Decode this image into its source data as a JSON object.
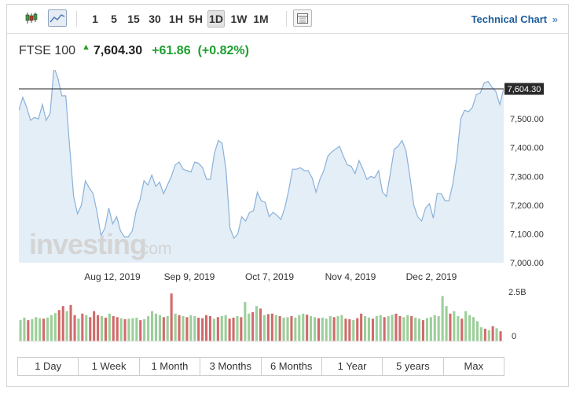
{
  "toolbar": {
    "chart_type_icons": [
      "candlestick-icon",
      "area-chart-icon"
    ],
    "intervals": [
      {
        "label": "1",
        "active": false
      },
      {
        "label": "5",
        "active": false
      },
      {
        "label": "15",
        "active": false
      },
      {
        "label": "30",
        "active": false
      },
      {
        "label": "1H",
        "active": false
      },
      {
        "label": "5H",
        "active": false
      },
      {
        "label": "1D",
        "active": true
      },
      {
        "label": "1W",
        "active": false
      },
      {
        "label": "1M",
        "active": false
      }
    ],
    "table_icon": "table-icon",
    "technical_chart_label": "Technical Chart",
    "technical_chart_chevron": "»"
  },
  "quote": {
    "name": "FTSE 100",
    "arrow": "up-arrow-icon",
    "price": "7,604.30",
    "change": "+61.86",
    "change_percent": "(+0.82%)",
    "color_up": "#1b9f2e"
  },
  "watermark": {
    "text": "investing",
    "suffix": ".com"
  },
  "chart_data": {
    "type": "area",
    "y_ticks": [
      "7,500.00",
      "7,400.00",
      "7,300.00",
      "7,200.00",
      "7,100.00",
      "7,000.00"
    ],
    "y_range": [
      7000,
      7670
    ],
    "x_ticks": [
      "Aug 12, 2019",
      "Sep 9, 2019",
      "Oct 7, 2019",
      "Nov 4, 2019",
      "Dec 2, 2019"
    ],
    "last_price_label": "7,604.30",
    "last_price": 7604.3,
    "line_color": "#8ab1d8",
    "fill_color": "#e4eef7",
    "prices": [
      7530,
      7575,
      7540,
      7495,
      7505,
      7500,
      7550,
      7495,
      7520,
      7680,
      7640,
      7580,
      7580,
      7400,
      7230,
      7170,
      7200,
      7285,
      7260,
      7240,
      7175,
      7095,
      7120,
      7190,
      7135,
      7160,
      7110,
      7090,
      7090,
      7110,
      7180,
      7220,
      7285,
      7270,
      7305,
      7265,
      7280,
      7240,
      7270,
      7300,
      7340,
      7350,
      7325,
      7320,
      7315,
      7350,
      7345,
      7330,
      7290,
      7290,
      7380,
      7425,
      7415,
      7320,
      7120,
      7085,
      7100,
      7160,
      7145,
      7175,
      7180,
      7245,
      7215,
      7210,
      7160,
      7175,
      7165,
      7150,
      7190,
      7250,
      7325,
      7325,
      7330,
      7320,
      7320,
      7295,
      7245,
      7290,
      7320,
      7370,
      7385,
      7395,
      7405,
      7370,
      7340,
      7335,
      7310,
      7355,
      7325,
      7290,
      7300,
      7295,
      7320,
      7245,
      7230,
      7310,
      7395,
      7405,
      7425,
      7390,
      7300,
      7200,
      7160,
      7145,
      7190,
      7205,
      7155,
      7240,
      7240,
      7215,
      7215,
      7275,
      7365,
      7500,
      7530,
      7525,
      7540,
      7585,
      7590,
      7625,
      7630,
      7610,
      7595,
      7550,
      7605
    ],
    "volume_axis": {
      "max_label": "2.5B",
      "zero_label": "0"
    },
    "volume": [
      {
        "v": 0.42,
        "up": true
      },
      {
        "v": 0.47,
        "up": true
      },
      {
        "v": 0.42,
        "up": false
      },
      {
        "v": 0.44,
        "up": true
      },
      {
        "v": 0.48,
        "up": true
      },
      {
        "v": 0.46,
        "up": true
      },
      {
        "v": 0.45,
        "up": false
      },
      {
        "v": 0.47,
        "up": true
      },
      {
        "v": 0.52,
        "up": true
      },
      {
        "v": 0.56,
        "up": true
      },
      {
        "v": 0.62,
        "up": false
      },
      {
        "v": 0.7,
        "up": false
      },
      {
        "v": 0.6,
        "up": true
      },
      {
        "v": 0.72,
        "up": false
      },
      {
        "v": 0.52,
        "up": false
      },
      {
        "v": 0.45,
        "up": true
      },
      {
        "v": 0.55,
        "up": false
      },
      {
        "v": 0.52,
        "up": true
      },
      {
        "v": 0.48,
        "up": false
      },
      {
        "v": 0.6,
        "up": false
      },
      {
        "v": 0.52,
        "up": false
      },
      {
        "v": 0.5,
        "up": true
      },
      {
        "v": 0.47,
        "up": false
      },
      {
        "v": 0.55,
        "up": true
      },
      {
        "v": 0.5,
        "up": false
      },
      {
        "v": 0.48,
        "up": false
      },
      {
        "v": 0.46,
        "up": true
      },
      {
        "v": 0.44,
        "up": false
      },
      {
        "v": 0.45,
        "up": true
      },
      {
        "v": 0.46,
        "up": true
      },
      {
        "v": 0.47,
        "up": true
      },
      {
        "v": 0.42,
        "up": false
      },
      {
        "v": 0.44,
        "up": true
      },
      {
        "v": 0.5,
        "up": true
      },
      {
        "v": 0.6,
        "up": true
      },
      {
        "v": 0.55,
        "up": true
      },
      {
        "v": 0.52,
        "up": true
      },
      {
        "v": 0.48,
        "up": false
      },
      {
        "v": 0.5,
        "up": true
      },
      {
        "v": 0.95,
        "up": false
      },
      {
        "v": 0.55,
        "up": true
      },
      {
        "v": 0.52,
        "up": false
      },
      {
        "v": 0.5,
        "up": true
      },
      {
        "v": 0.48,
        "up": false
      },
      {
        "v": 0.52,
        "up": true
      },
      {
        "v": 0.5,
        "up": true
      },
      {
        "v": 0.47,
        "up": false
      },
      {
        "v": 0.46,
        "up": false
      },
      {
        "v": 0.52,
        "up": false
      },
      {
        "v": 0.5,
        "up": false
      },
      {
        "v": 0.45,
        "up": true
      },
      {
        "v": 0.48,
        "up": false
      },
      {
        "v": 0.5,
        "up": true
      },
      {
        "v": 0.52,
        "up": true
      },
      {
        "v": 0.45,
        "up": false
      },
      {
        "v": 0.47,
        "up": false
      },
      {
        "v": 0.5,
        "up": true
      },
      {
        "v": 0.48,
        "up": false
      },
      {
        "v": 0.78,
        "up": true
      },
      {
        "v": 0.55,
        "up": true
      },
      {
        "v": 0.58,
        "up": false
      },
      {
        "v": 0.7,
        "up": true
      },
      {
        "v": 0.65,
        "up": false
      },
      {
        "v": 0.52,
        "up": true
      },
      {
        "v": 0.54,
        "up": false
      },
      {
        "v": 0.55,
        "up": false
      },
      {
        "v": 0.52,
        "up": true
      },
      {
        "v": 0.5,
        "up": false
      },
      {
        "v": 0.47,
        "up": true
      },
      {
        "v": 0.48,
        "up": true
      },
      {
        "v": 0.5,
        "up": false
      },
      {
        "v": 0.47,
        "up": true
      },
      {
        "v": 0.52,
        "up": true
      },
      {
        "v": 0.55,
        "up": true
      },
      {
        "v": 0.53,
        "up": false
      },
      {
        "v": 0.5,
        "up": true
      },
      {
        "v": 0.48,
        "up": true
      },
      {
        "v": 0.46,
        "up": false
      },
      {
        "v": 0.47,
        "up": true
      },
      {
        "v": 0.45,
        "up": true
      },
      {
        "v": 0.5,
        "up": true
      },
      {
        "v": 0.48,
        "up": false
      },
      {
        "v": 0.5,
        "up": true
      },
      {
        "v": 0.52,
        "up": true
      },
      {
        "v": 0.45,
        "up": false
      },
      {
        "v": 0.44,
        "up": false
      },
      {
        "v": 0.42,
        "up": true
      },
      {
        "v": 0.46,
        "up": false
      },
      {
        "v": 0.55,
        "up": false
      },
      {
        "v": 0.5,
        "up": true
      },
      {
        "v": 0.47,
        "up": true
      },
      {
        "v": 0.45,
        "up": false
      },
      {
        "v": 0.5,
        "up": true
      },
      {
        "v": 0.52,
        "up": true
      },
      {
        "v": 0.48,
        "up": false
      },
      {
        "v": 0.5,
        "up": true
      },
      {
        "v": 0.53,
        "up": true
      },
      {
        "v": 0.55,
        "up": false
      },
      {
        "v": 0.5,
        "up": false
      },
      {
        "v": 0.48,
        "up": true
      },
      {
        "v": 0.52,
        "up": true
      },
      {
        "v": 0.5,
        "up": false
      },
      {
        "v": 0.47,
        "up": true
      },
      {
        "v": 0.45,
        "up": true
      },
      {
        "v": 0.42,
        "up": false
      },
      {
        "v": 0.46,
        "up": true
      },
      {
        "v": 0.48,
        "up": true
      },
      {
        "v": 0.52,
        "up": true
      },
      {
        "v": 0.5,
        "up": true
      },
      {
        "v": 0.9,
        "up": true
      },
      {
        "v": 0.7,
        "up": true
      },
      {
        "v": 0.55,
        "up": false
      },
      {
        "v": 0.6,
        "up": true
      },
      {
        "v": 0.5,
        "up": true
      },
      {
        "v": 0.45,
        "up": false
      },
      {
        "v": 0.6,
        "up": true
      },
      {
        "v": 0.52,
        "up": true
      },
      {
        "v": 0.48,
        "up": true
      },
      {
        "v": 0.4,
        "up": true
      },
      {
        "v": 0.28,
        "up": true
      },
      {
        "v": 0.25,
        "up": false
      },
      {
        "v": 0.22,
        "up": true
      },
      {
        "v": 0.3,
        "up": false
      },
      {
        "v": 0.26,
        "up": true
      },
      {
        "v": 0.2,
        "up": false
      }
    ]
  },
  "periods": [
    "1 Day",
    "1 Week",
    "1 Month",
    "3 Months",
    "6 Months",
    "1 Year",
    "5 years",
    "Max"
  ]
}
